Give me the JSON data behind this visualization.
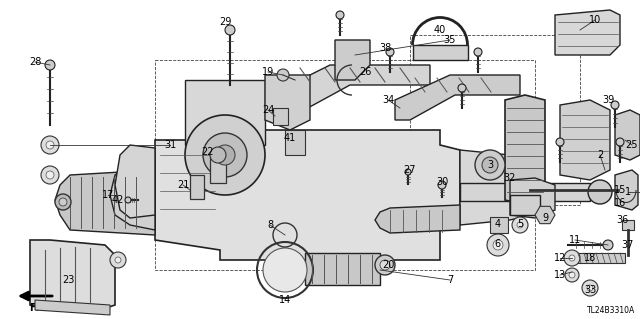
{
  "fig_width": 6.4,
  "fig_height": 3.19,
  "dpi": 100,
  "background_color": "#ffffff",
  "diagram_code": "TL24B3310A",
  "fr_label": "FR."
}
